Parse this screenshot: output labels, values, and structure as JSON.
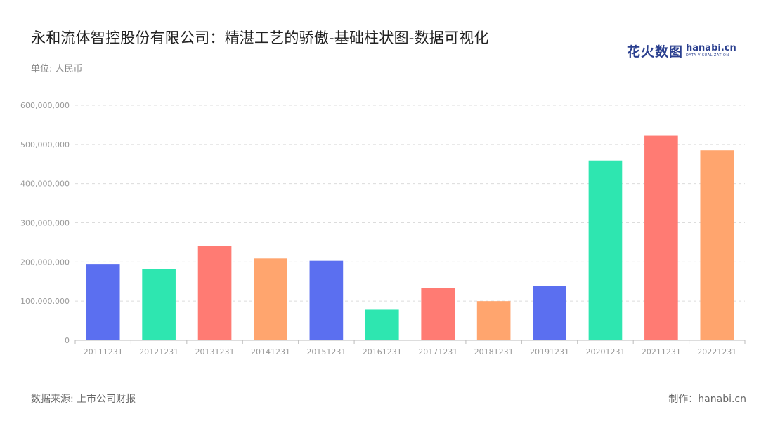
{
  "title": "永和流体智控股份有限公司：精湛工艺的骄傲-基础柱状图-数据可视化",
  "unit_label": "单位: 人民币",
  "logo": {
    "cn": "花火数图",
    "en": "hanabi.cn",
    "tagline": "DATA VISUALIZATION"
  },
  "footer": {
    "source": "数据来源: 上市公司财报",
    "credit": "制作：hanabi.cn"
  },
  "chart_data": {
    "type": "bar",
    "categories": [
      "20111231",
      "20121231",
      "20131231",
      "20141231",
      "20151231",
      "20161231",
      "20171231",
      "20181231",
      "20191231",
      "20201231",
      "20211231",
      "20221231"
    ],
    "values": [
      195000000,
      182000000,
      240000000,
      209000000,
      203000000,
      78000000,
      133000000,
      100000000,
      138000000,
      459000000,
      522000000,
      485000000
    ],
    "colors": [
      "#5b6ff0",
      "#2ee6b0",
      "#ff7b73",
      "#ffa56e",
      "#5b6ff0",
      "#2ee6b0",
      "#ff7b73",
      "#ffa56e",
      "#5b6ff0",
      "#2ee6b0",
      "#ff7b73",
      "#ffa56e"
    ],
    "ylim": [
      0,
      600000000
    ],
    "yticks": [
      0,
      100000000,
      200000000,
      300000000,
      400000000,
      500000000,
      600000000
    ],
    "ytick_labels": [
      "0",
      "100,000,000",
      "200,000,000",
      "300,000,000",
      "400,000,000",
      "500,000,000",
      "600,000,000"
    ],
    "grid": true,
    "xlabel": "",
    "ylabel": ""
  }
}
